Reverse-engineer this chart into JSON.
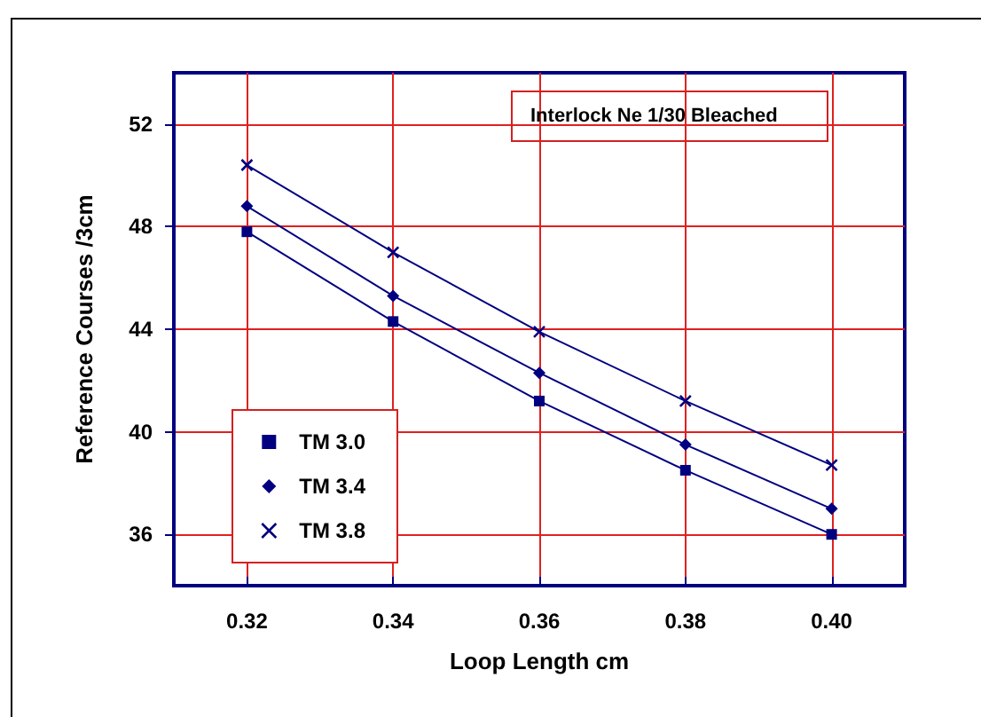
{
  "chart_data": {
    "type": "line",
    "title": "Interlock Ne 1/30 Bleached",
    "xlabel": "Loop Length cm",
    "ylabel": "Reference Courses /3cm",
    "x": [
      0.32,
      0.34,
      0.36,
      0.38,
      0.4
    ],
    "series": [
      {
        "name": "TM 3.0",
        "color": "#000080",
        "marker": "square",
        "values": [
          47.8,
          44.3,
          41.2,
          38.5,
          36.0
        ]
      },
      {
        "name": "TM 3.4",
        "color": "#000080",
        "marker": "diamond",
        "values": [
          48.8,
          45.3,
          42.3,
          39.5,
          37.0
        ]
      },
      {
        "name": "TM 3.8",
        "color": "#000080",
        "marker": "cross",
        "values": [
          50.4,
          47.0,
          43.9,
          41.2,
          38.7
        ]
      }
    ],
    "xlim": [
      0.31,
      0.41
    ],
    "xticks": [
      0.32,
      0.34,
      0.36,
      {
        "value": 0.38,
        "label": "0.38"
      },
      {
        "value": 0.4,
        "label": "0.40"
      }
    ],
    "ylim": [
      34,
      54
    ],
    "yticks": [
      36,
      40,
      44,
      48,
      52
    ],
    "grid": true,
    "legend": "bottom left",
    "line_style": "solid"
  }
}
